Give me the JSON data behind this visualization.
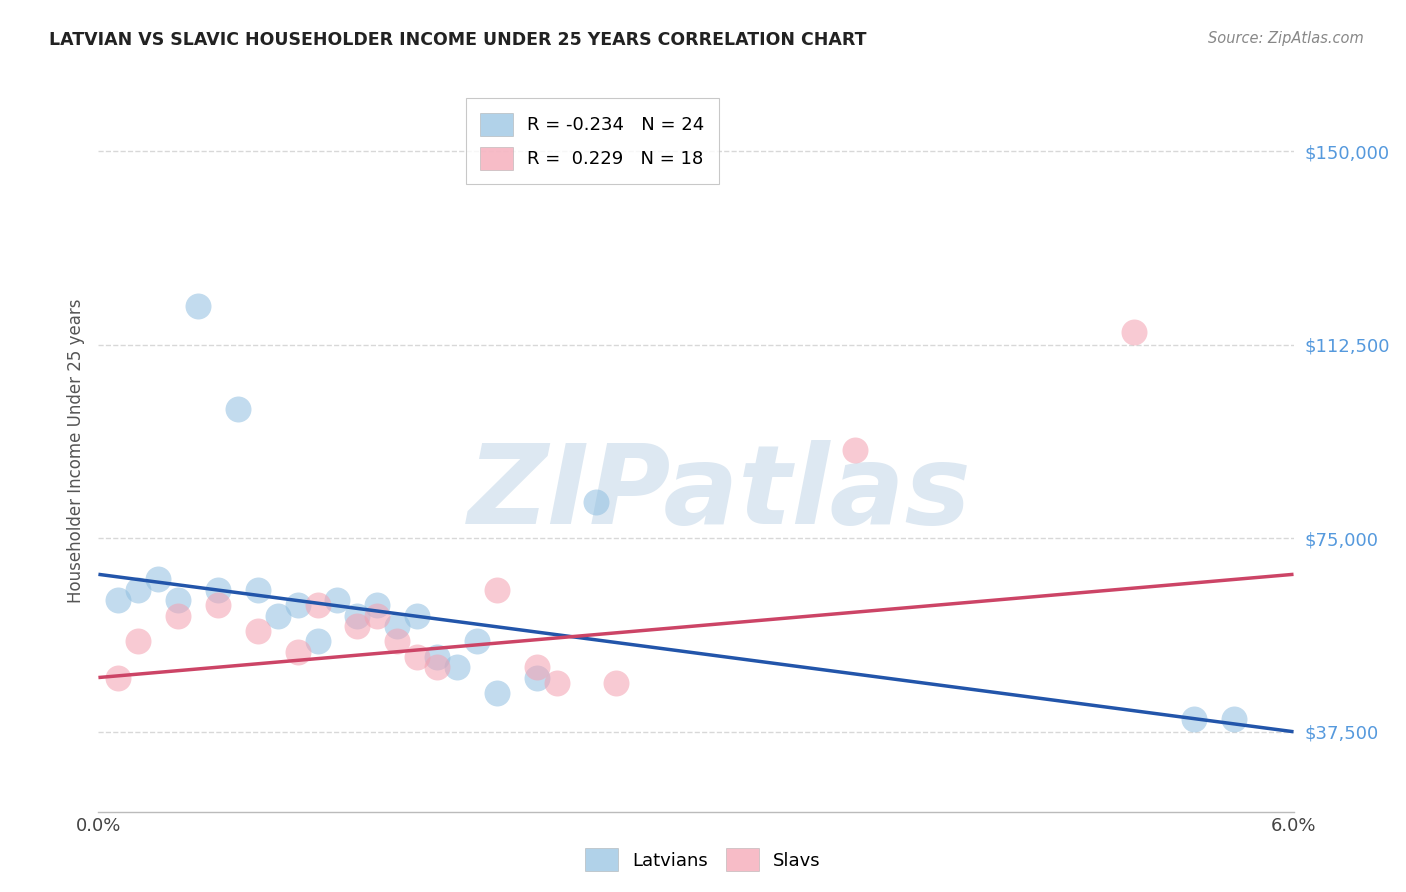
{
  "title": "LATVIAN VS SLAVIC HOUSEHOLDER INCOME UNDER 25 YEARS CORRELATION CHART",
  "source": "Source: ZipAtlas.com",
  "ylabel": "Householder Income Under 25 years",
  "y_tick_values": [
    37500,
    75000,
    112500,
    150000
  ],
  "xlim": [
    0.0,
    0.06
  ],
  "ylim": [
    22000,
    162000
  ],
  "latvian_color": "#90BFE0",
  "slavic_color": "#F4A0B0",
  "latvian_line_color": "#2255AA",
  "slavic_line_color": "#CC4466",
  "background_color": "#ffffff",
  "grid_color": "#d8d8d8",
  "watermark_text": "ZIPatlas",
  "watermark_color": "#dde8f2",
  "latvians_x": [
    0.001,
    0.002,
    0.003,
    0.004,
    0.005,
    0.006,
    0.007,
    0.008,
    0.009,
    0.01,
    0.011,
    0.012,
    0.013,
    0.014,
    0.015,
    0.016,
    0.017,
    0.018,
    0.019,
    0.02,
    0.022,
    0.025,
    0.055,
    0.057
  ],
  "latvians_y": [
    63000,
    65000,
    67000,
    63000,
    120000,
    65000,
    100000,
    65000,
    60000,
    62000,
    55000,
    63000,
    60000,
    62000,
    58000,
    60000,
    52000,
    50000,
    55000,
    45000,
    48000,
    82000,
    40000,
    40000
  ],
  "slavs_x": [
    0.001,
    0.002,
    0.004,
    0.006,
    0.008,
    0.01,
    0.011,
    0.013,
    0.014,
    0.015,
    0.016,
    0.017,
    0.02,
    0.022,
    0.023,
    0.026,
    0.038,
    0.052
  ],
  "slavs_y": [
    48000,
    55000,
    60000,
    62000,
    57000,
    53000,
    62000,
    58000,
    60000,
    55000,
    52000,
    50000,
    65000,
    50000,
    47000,
    47000,
    92000,
    115000
  ],
  "lat_line_x0": 0.0,
  "lat_line_y0": 68000,
  "lat_line_x1": 0.06,
  "lat_line_y1": 37500,
  "slav_line_x0": 0.0,
  "slav_line_y0": 48000,
  "slav_line_x1": 0.06,
  "slav_line_y1": 68000
}
